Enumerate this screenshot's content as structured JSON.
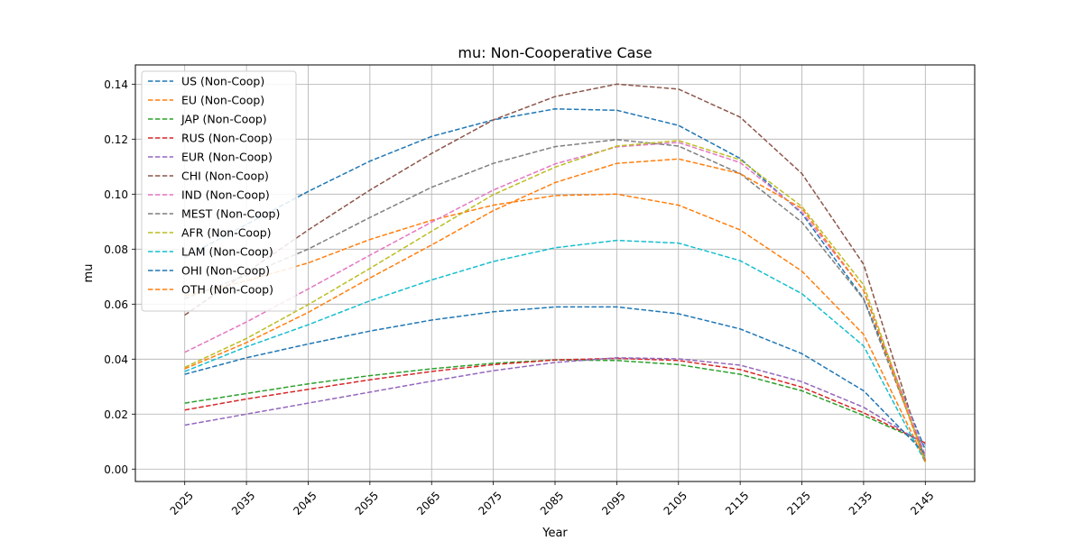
{
  "chart_data": {
    "type": "line",
    "title": "mu: Non-Cooperative Case",
    "xlabel": "Year",
    "ylabel": "mu",
    "x": [
      2025,
      2035,
      2045,
      2055,
      2065,
      2075,
      2085,
      2095,
      2105,
      2115,
      2125,
      2135,
      2145
    ],
    "x_tick_labels": [
      "2025",
      "2035",
      "2045",
      "2055",
      "2065",
      "2075",
      "2085",
      "2095",
      "2105",
      "2115",
      "2125",
      "2135",
      "2145"
    ],
    "xlim": [
      2017,
      2153
    ],
    "ylim": [
      -0.0045,
      0.147
    ],
    "y_ticks": [
      0.0,
      0.02,
      0.04,
      0.06,
      0.08,
      0.1,
      0.12,
      0.14
    ],
    "y_tick_labels": [
      "0.00",
      "0.02",
      "0.04",
      "0.06",
      "0.08",
      "0.10",
      "0.12",
      "0.14"
    ],
    "grid": true,
    "line_style": "dashed",
    "legend_position": "upper-left",
    "series": [
      {
        "name": "US (Non-Coop)",
        "color": "#1f77b4",
        "values": [
          0.077,
          0.089,
          0.101,
          0.112,
          0.121,
          0.127,
          0.131,
          0.1305,
          0.125,
          0.113,
          0.093,
          0.062,
          0.007
        ]
      },
      {
        "name": "EU (Non-Coop)",
        "color": "#ff7f0e",
        "values": [
          0.063,
          0.0685,
          0.075,
          0.0835,
          0.0905,
          0.096,
          0.0995,
          0.1,
          0.096,
          0.087,
          0.072,
          0.049,
          0.003
        ]
      },
      {
        "name": "JAP (Non-Coop)",
        "color": "#2ca02c",
        "values": [
          0.024,
          0.0275,
          0.031,
          0.034,
          0.0365,
          0.0385,
          0.0397,
          0.0395,
          0.038,
          0.0345,
          0.0285,
          0.0195,
          0.0095
        ]
      },
      {
        "name": "RUS (Non-Coop)",
        "color": "#d62728",
        "values": [
          0.0215,
          0.0255,
          0.029,
          0.0325,
          0.0355,
          0.038,
          0.0397,
          0.0403,
          0.0395,
          0.0362,
          0.0298,
          0.0205,
          0.0095
        ]
      },
      {
        "name": "EUR (Non-Coop)",
        "color": "#9467bd",
        "values": [
          0.016,
          0.02,
          0.024,
          0.028,
          0.032,
          0.0358,
          0.0388,
          0.0405,
          0.0401,
          0.0378,
          0.0318,
          0.0225,
          0.009
        ]
      },
      {
        "name": "CHI (Non-Coop)",
        "color": "#8c564b",
        "values": [
          0.056,
          0.0715,
          0.087,
          0.1015,
          0.1148,
          0.127,
          0.1355,
          0.14,
          0.1382,
          0.128,
          0.1075,
          0.0745,
          0.003
        ]
      },
      {
        "name": "IND (Non-Coop)",
        "color": "#e377c2",
        "values": [
          0.0425,
          0.0535,
          0.0655,
          0.0778,
          0.0898,
          0.1015,
          0.111,
          0.1172,
          0.1188,
          0.1115,
          0.0935,
          0.065,
          0.005
        ]
      },
      {
        "name": "MEST (Non-Coop)",
        "color": "#7f7f7f",
        "values": [
          0.062,
          0.0705,
          0.08,
          0.0915,
          0.1025,
          0.1112,
          0.1173,
          0.1198,
          0.1175,
          0.1075,
          0.0898,
          0.0618,
          0.004
        ]
      },
      {
        "name": "AFR (Non-Coop)",
        "color": "#bcbd22",
        "values": [
          0.037,
          0.0475,
          0.0598,
          0.073,
          0.0865,
          0.0998,
          0.1098,
          0.1175,
          0.1195,
          0.1125,
          0.0955,
          0.067,
          0.0025
        ]
      },
      {
        "name": "LAM (Non-Coop)",
        "color": "#17becf",
        "values": [
          0.0355,
          0.0445,
          0.0525,
          0.0612,
          0.0688,
          0.0755,
          0.0805,
          0.0832,
          0.0822,
          0.0758,
          0.0638,
          0.0448,
          0.0025
        ]
      },
      {
        "name": "OHI (Non-Coop)",
        "color": "#1f77b4",
        "values": [
          0.0345,
          0.0405,
          0.0455,
          0.0502,
          0.0542,
          0.0572,
          0.059,
          0.059,
          0.0565,
          0.051,
          0.042,
          0.0285,
          0.0055
        ]
      },
      {
        "name": "OTH (Non-Coop)",
        "color": "#ff7f0e",
        "values": [
          0.0365,
          0.046,
          0.057,
          0.0695,
          0.0815,
          0.094,
          0.1042,
          0.1112,
          0.1128,
          0.1075,
          0.0948,
          0.065,
          0.0025
        ]
      }
    ]
  }
}
